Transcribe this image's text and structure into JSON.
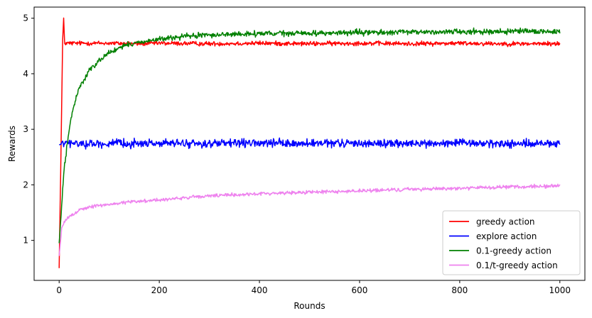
{
  "chart_data": {
    "type": "line",
    "title": "",
    "xlabel": "Rounds",
    "ylabel": "Rewards",
    "xlim": [
      -50,
      1050
    ],
    "ylim": [
      0.28,
      5.2
    ],
    "xticks": [
      0,
      200,
      400,
      600,
      800,
      1000
    ],
    "xtick_labels": [
      "0",
      "200",
      "400",
      "600",
      "800",
      "1000"
    ],
    "yticks": [
      1,
      2,
      3,
      4,
      5
    ],
    "ytick_labels": [
      "1",
      "2",
      "3",
      "4",
      "5"
    ],
    "grid": false,
    "legend_position": "lower-right",
    "series": [
      {
        "name": "greedy action",
        "color": "#ff0000",
        "x": [
          0,
          4,
          7,
          9,
          11,
          20,
          50,
          100,
          150,
          200,
          300,
          400,
          500,
          600,
          700,
          800,
          900,
          1000
        ],
        "y": [
          0.5,
          2.8,
          4.6,
          4.97,
          4.55,
          4.55,
          4.55,
          4.55,
          4.54,
          4.55,
          4.54,
          4.55,
          4.54,
          4.55,
          4.54,
          4.55,
          4.54,
          4.54
        ],
        "noise": 0.025
      },
      {
        "name": "explore action",
        "color": "#0000ff",
        "x": [
          0,
          10,
          50,
          100,
          200,
          300,
          400,
          500,
          600,
          700,
          800,
          900,
          1000
        ],
        "y": [
          2.72,
          2.75,
          2.74,
          2.74,
          2.75,
          2.74,
          2.75,
          2.74,
          2.75,
          2.74,
          2.75,
          2.74,
          2.74
        ],
        "noise": 0.045
      },
      {
        "name": "0.1-greedy action",
        "color": "#008000",
        "x": [
          0,
          5,
          10,
          20,
          30,
          40,
          60,
          80,
          100,
          130,
          160,
          200,
          250,
          300,
          400,
          500,
          600,
          700,
          800,
          900,
          1000
        ],
        "y": [
          0.95,
          1.6,
          2.3,
          3.0,
          3.45,
          3.75,
          4.05,
          4.25,
          4.38,
          4.5,
          4.57,
          4.62,
          4.67,
          4.7,
          4.72,
          4.73,
          4.74,
          4.75,
          4.76,
          4.76,
          4.76
        ],
        "noise": 0.03
      },
      {
        "name": "0.1/t-greedy action",
        "color": "#ee82ee",
        "x": [
          0,
          5,
          10,
          20,
          40,
          60,
          100,
          150,
          200,
          300,
          400,
          500,
          600,
          700,
          800,
          900,
          1000
        ],
        "y": [
          0.72,
          1.2,
          1.33,
          1.42,
          1.55,
          1.6,
          1.65,
          1.7,
          1.73,
          1.8,
          1.84,
          1.87,
          1.89,
          1.92,
          1.94,
          1.96,
          1.98
        ],
        "noise": 0.02
      }
    ]
  }
}
